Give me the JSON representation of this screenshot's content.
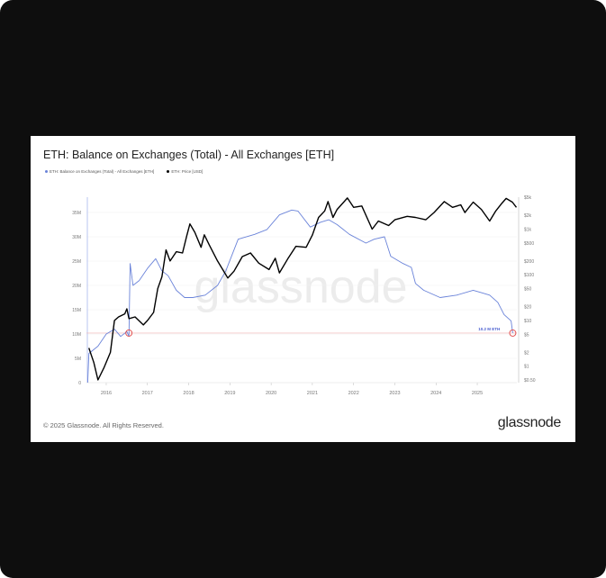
{
  "title": "ETH: Balance on Exchanges (Total) - All Exchanges [ETH]",
  "footer": "© 2025 Glassnode. All Rights Reserved.",
  "brand": "glassnode",
  "watermark": "glassnode",
  "chart_data": {
    "type": "line",
    "title": "ETH: Balance on Exchanges (Total) - All Exchanges [ETH]",
    "legend_placement": "top-left",
    "grid": true,
    "xlim": [
      2015.52,
      2025.96
    ],
    "x_ticks": [
      "2016",
      "2017",
      "2018",
      "2019",
      "2020",
      "2021",
      "2022",
      "2023",
      "2024",
      "2025"
    ],
    "y_left": {
      "range": [
        0,
        37
      ],
      "ticks": [
        "0",
        "5M",
        "10M",
        "15M",
        "20M",
        "25M",
        "30M",
        "35M"
      ],
      "tick_values": [
        0,
        5,
        10,
        15,
        20,
        25,
        30,
        35
      ]
    },
    "y_right": {
      "scale": "log",
      "range": [
        0.45,
        5000
      ],
      "ticks": [
        "$0.50",
        "$1",
        "$2",
        "$5",
        "$10",
        "$20",
        "$50",
        "$100",
        "$200",
        "$500",
        "$1k",
        "$2k",
        "$5k"
      ],
      "tick_values": [
        0.5,
        1,
        2,
        5,
        10,
        20,
        50,
        100,
        200,
        500,
        1000,
        2000,
        5000
      ]
    },
    "series": [
      {
        "name": "ETH: Balance on Exchanges (Total) - All Exchanges [ETH]",
        "axis": "left",
        "unit": "M ETH",
        "color": "#6a83d9",
        "points": [
          [
            2015.55,
            0
          ],
          [
            2015.58,
            6
          ],
          [
            2015.8,
            7.5
          ],
          [
            2016.0,
            10
          ],
          [
            2016.2,
            11
          ],
          [
            2016.35,
            9.5
          ],
          [
            2016.5,
            10.5
          ],
          [
            2016.55,
            9.5
          ],
          [
            2016.58,
            24.5
          ],
          [
            2016.65,
            20
          ],
          [
            2016.8,
            21
          ],
          [
            2017.0,
            23.5
          ],
          [
            2017.2,
            25.5
          ],
          [
            2017.35,
            23
          ],
          [
            2017.5,
            22
          ],
          [
            2017.7,
            19
          ],
          [
            2017.9,
            17.5
          ],
          [
            2018.1,
            17.5
          ],
          [
            2018.4,
            18
          ],
          [
            2018.7,
            20
          ],
          [
            2018.9,
            23
          ],
          [
            2019.2,
            29.5
          ],
          [
            2019.6,
            30.5
          ],
          [
            2019.9,
            31.5
          ],
          [
            2020.2,
            34.5
          ],
          [
            2020.5,
            35.5
          ],
          [
            2020.65,
            35.3
          ],
          [
            2020.95,
            32
          ],
          [
            2021.2,
            33
          ],
          [
            2021.4,
            33.5
          ],
          [
            2021.6,
            32.5
          ],
          [
            2021.9,
            30.5
          ],
          [
            2022.3,
            28.7
          ],
          [
            2022.5,
            29.5
          ],
          [
            2022.75,
            30
          ],
          [
            2022.9,
            26
          ],
          [
            2023.2,
            24.5
          ],
          [
            2023.4,
            23.7
          ],
          [
            2023.5,
            20.4
          ],
          [
            2023.7,
            19
          ],
          [
            2024.1,
            17.5
          ],
          [
            2024.5,
            18
          ],
          [
            2024.9,
            19
          ],
          [
            2025.1,
            18.5
          ],
          [
            2025.3,
            18
          ],
          [
            2025.5,
            16.5
          ],
          [
            2025.65,
            14
          ],
          [
            2025.82,
            12.7
          ],
          [
            2025.86,
            10.2
          ]
        ]
      },
      {
        "name": "ETH: Price [USD]",
        "axis": "right",
        "unit": "USD",
        "color": "#000000",
        "points": [
          [
            2015.58,
            2.5
          ],
          [
            2015.7,
            1.2
          ],
          [
            2015.8,
            0.5
          ],
          [
            2015.95,
            0.95
          ],
          [
            2016.1,
            2
          ],
          [
            2016.2,
            10
          ],
          [
            2016.3,
            12
          ],
          [
            2016.45,
            14
          ],
          [
            2016.5,
            18
          ],
          [
            2016.55,
            11
          ],
          [
            2016.7,
            12
          ],
          [
            2016.9,
            8
          ],
          [
            2017.0,
            10
          ],
          [
            2017.15,
            15
          ],
          [
            2017.25,
            50
          ],
          [
            2017.35,
            90
          ],
          [
            2017.45,
            350
          ],
          [
            2017.55,
            200
          ],
          [
            2017.7,
            320
          ],
          [
            2017.85,
            300
          ],
          [
            2017.95,
            700
          ],
          [
            2018.03,
            1300
          ],
          [
            2018.15,
            850
          ],
          [
            2018.3,
            400
          ],
          [
            2018.38,
            750
          ],
          [
            2018.5,
            450
          ],
          [
            2018.7,
            200
          ],
          [
            2018.95,
            85
          ],
          [
            2019.1,
            120
          ],
          [
            2019.3,
            250
          ],
          [
            2019.5,
            300
          ],
          [
            2019.7,
            180
          ],
          [
            2019.95,
            130
          ],
          [
            2020.1,
            230
          ],
          [
            2020.2,
            110
          ],
          [
            2020.4,
            220
          ],
          [
            2020.6,
            420
          ],
          [
            2020.85,
            400
          ],
          [
            2021.0,
            740
          ],
          [
            2021.15,
            1800
          ],
          [
            2021.3,
            2500
          ],
          [
            2021.38,
            4000
          ],
          [
            2021.5,
            1800
          ],
          [
            2021.6,
            2700
          ],
          [
            2021.7,
            3400
          ],
          [
            2021.85,
            4800
          ],
          [
            2022.0,
            3000
          ],
          [
            2022.2,
            3200
          ],
          [
            2022.45,
            1000
          ],
          [
            2022.6,
            1500
          ],
          [
            2022.85,
            1200
          ],
          [
            2023.0,
            1600
          ],
          [
            2023.3,
            1900
          ],
          [
            2023.5,
            1800
          ],
          [
            2023.75,
            1600
          ],
          [
            2023.95,
            2300
          ],
          [
            2024.2,
            4000
          ],
          [
            2024.4,
            3000
          ],
          [
            2024.6,
            3400
          ],
          [
            2024.7,
            2300
          ],
          [
            2024.9,
            3900
          ],
          [
            2025.1,
            2700
          ],
          [
            2025.3,
            1500
          ],
          [
            2025.45,
            2500
          ],
          [
            2025.6,
            3700
          ],
          [
            2025.7,
            4700
          ],
          [
            2025.85,
            3900
          ],
          [
            2025.95,
            3000
          ]
        ]
      }
    ],
    "annotations": [
      {
        "label": "10.2 M ETH",
        "value": 10.2,
        "axis": "left",
        "color": "#e04a4a"
      }
    ],
    "markers": [
      {
        "x": 2016.55,
        "y": 10.2
      },
      {
        "x": 2025.86,
        "y": 10.2
      }
    ]
  }
}
